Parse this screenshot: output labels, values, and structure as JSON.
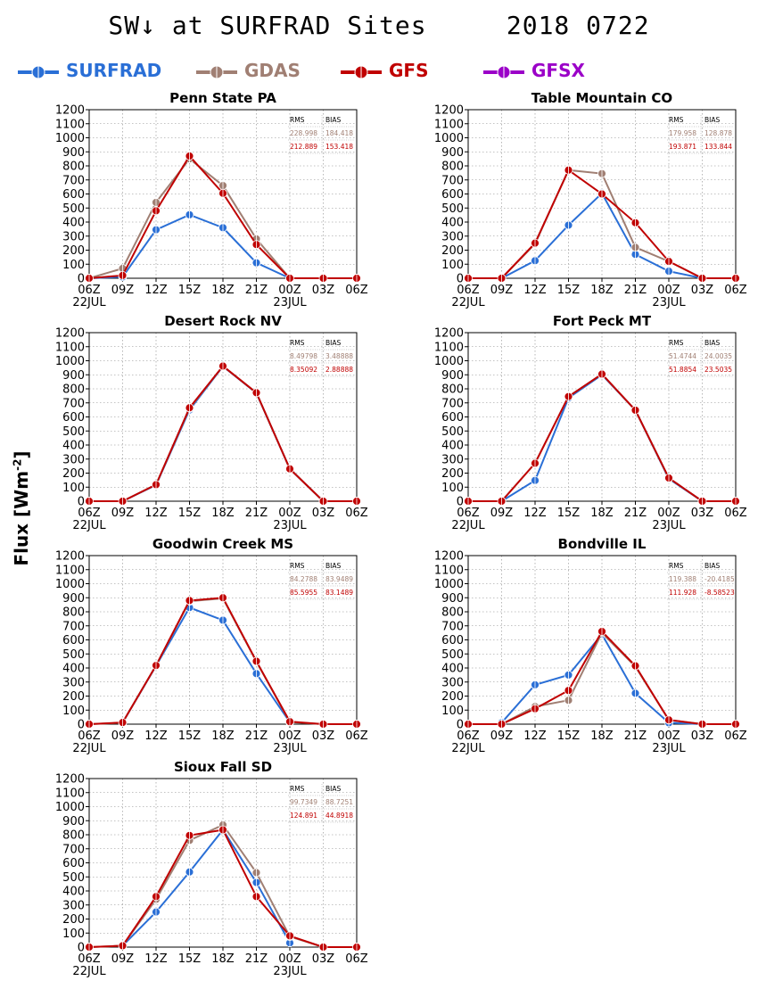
{
  "header": {
    "title_left": "SW↓ at SURFRAD Sites",
    "title_right": "2018 0722"
  },
  "legend": [
    {
      "name": "SURFRAD",
      "color": "#2a6fd6"
    },
    {
      "name": "GDAS",
      "color": "#a07f73"
    },
    {
      "name": "GFS",
      "color": "#c00000"
    },
    {
      "name": "GFSX",
      "color": "#9b00c8"
    }
  ],
  "ylabel": {
    "text": "Flux [Wm",
    "sup": "-2",
    "close": "]"
  },
  "chart_data": [
    {
      "type": "line",
      "title": "Penn State PA",
      "x": [
        "06Z",
        "09Z",
        "12Z",
        "15Z",
        "18Z",
        "21Z",
        "00Z",
        "03Z",
        "06Z"
      ],
      "date_labels": [
        "22JUL",
        "23JUL"
      ],
      "ylim": [
        0,
        1200
      ],
      "yticks": [
        0,
        100,
        200,
        300,
        400,
        500,
        600,
        700,
        800,
        900,
        1000,
        1100,
        1200
      ],
      "grid": true,
      "stats": {
        "rms_label": "RMS",
        "bias_label": "BIAS",
        "rows": [
          {
            "rms": "228.998",
            "bias": "184.418",
            "color": "#a07f73"
          },
          {
            "rms": "212.889",
            "bias": "153.418",
            "color": "#c00000"
          }
        ]
      },
      "series": [
        {
          "name": "SURFRAD",
          "color": "#2a6fd6",
          "values": [
            0,
            10,
            345,
            452,
            360,
            110,
            0,
            null,
            null
          ]
        },
        {
          "name": "GDAS",
          "color": "#a07f73",
          "values": [
            0,
            70,
            540,
            850,
            660,
            280,
            0,
            0,
            0
          ]
        },
        {
          "name": "GFS",
          "color": "#c00000",
          "values": [
            0,
            20,
            480,
            870,
            605,
            240,
            0,
            0,
            0
          ]
        }
      ]
    },
    {
      "type": "line",
      "title": "Table Mountain CO",
      "x": [
        "06Z",
        "09Z",
        "12Z",
        "15Z",
        "18Z",
        "21Z",
        "00Z",
        "03Z",
        "06Z"
      ],
      "date_labels": [
        "22JUL",
        "23JUL"
      ],
      "ylim": [
        0,
        1200
      ],
      "yticks": [
        0,
        100,
        200,
        300,
        400,
        500,
        600,
        700,
        800,
        900,
        1000,
        1100,
        1200
      ],
      "grid": true,
      "stats": {
        "rms_label": "RMS",
        "bias_label": "BIAS",
        "rows": [
          {
            "rms": "179.958",
            "bias": "128.878",
            "color": "#a07f73"
          },
          {
            "rms": "193.871",
            "bias": "133.844",
            "color": "#c00000"
          }
        ]
      },
      "series": [
        {
          "name": "SURFRAD",
          "color": "#2a6fd6",
          "values": [
            null,
            0,
            125,
            378,
            605,
            170,
            50,
            0,
            null
          ]
        },
        {
          "name": "GDAS",
          "color": "#a07f73",
          "values": [
            0,
            0,
            245,
            770,
            745,
            220,
            120,
            0,
            0
          ]
        },
        {
          "name": "GFS",
          "color": "#c00000",
          "values": [
            0,
            0,
            250,
            770,
            600,
            395,
            120,
            0,
            0
          ]
        }
      ]
    },
    {
      "type": "line",
      "title": "Desert Rock NV",
      "x": [
        "06Z",
        "09Z",
        "12Z",
        "15Z",
        "18Z",
        "21Z",
        "00Z",
        "03Z",
        "06Z"
      ],
      "date_labels": [
        "22JUL",
        "23JUL"
      ],
      "ylim": [
        0,
        1200
      ],
      "yticks": [
        0,
        100,
        200,
        300,
        400,
        500,
        600,
        700,
        800,
        900,
        1000,
        1100,
        1200
      ],
      "grid": true,
      "stats": {
        "rms_label": "RMS",
        "bias_label": "BIAS",
        "rows": [
          {
            "rms": "8.49798",
            "bias": "3.48888",
            "color": "#a07f73"
          },
          {
            "rms": "8.35092",
            "bias": "2.88888",
            "color": "#c00000"
          }
        ]
      },
      "series": [
        {
          "name": "SURFRAD",
          "color": "#2a6fd6",
          "values": [
            null,
            0,
            115,
            650,
            960,
            770,
            230,
            0,
            null
          ]
        },
        {
          "name": "GDAS",
          "color": "#a07f73",
          "values": [
            0,
            0,
            118,
            660,
            962,
            772,
            230,
            0,
            0
          ]
        },
        {
          "name": "GFS",
          "color": "#c00000",
          "values": [
            0,
            0,
            118,
            665,
            962,
            772,
            230,
            0,
            0
          ]
        }
      ]
    },
    {
      "type": "line",
      "title": "Fort Peck MT",
      "x": [
        "06Z",
        "09Z",
        "12Z",
        "15Z",
        "18Z",
        "21Z",
        "00Z",
        "03Z",
        "06Z"
      ],
      "date_labels": [
        "22JUL",
        "23JUL"
      ],
      "ylim": [
        0,
        1200
      ],
      "yticks": [
        0,
        100,
        200,
        300,
        400,
        500,
        600,
        700,
        800,
        900,
        1000,
        1100,
        1200
      ],
      "grid": true,
      "stats": {
        "rms_label": "RMS",
        "bias_label": "BIAS",
        "rows": [
          {
            "rms": "51.4744",
            "bias": "24.0035",
            "color": "#a07f73"
          },
          {
            "rms": "51.8854",
            "bias": "23.5035",
            "color": "#c00000"
          }
        ]
      },
      "series": [
        {
          "name": "SURFRAD",
          "color": "#2a6fd6",
          "values": [
            null,
            0,
            148,
            735,
            900,
            648,
            160,
            0,
            null
          ]
        },
        {
          "name": "GDAS",
          "color": "#a07f73",
          "values": [
            0,
            0,
            270,
            745,
            905,
            648,
            165,
            0,
            0
          ]
        },
        {
          "name": "GFS",
          "color": "#c00000",
          "values": [
            0,
            0,
            270,
            745,
            905,
            648,
            165,
            0,
            0
          ]
        }
      ]
    },
    {
      "type": "line",
      "title": "Goodwin Creek MS",
      "x": [
        "06Z",
        "09Z",
        "12Z",
        "15Z",
        "18Z",
        "21Z",
        "00Z",
        "03Z",
        "06Z"
      ],
      "date_labels": [
        "22JUL",
        "23JUL"
      ],
      "ylim": [
        0,
        1200
      ],
      "yticks": [
        0,
        100,
        200,
        300,
        400,
        500,
        600,
        700,
        800,
        900,
        1000,
        1100,
        1200
      ],
      "grid": true,
      "stats": {
        "rms_label": "RMS",
        "bias_label": "BIAS",
        "rows": [
          {
            "rms": "84.2788",
            "bias": "83.9489",
            "color": "#a07f73"
          },
          {
            "rms": "85.5955",
            "bias": "83.1489",
            "color": "#c00000"
          }
        ]
      },
      "series": [
        {
          "name": "SURFRAD",
          "color": "#2a6fd6",
          "values": [
            null,
            10,
            415,
            830,
            740,
            360,
            15,
            null,
            null
          ]
        },
        {
          "name": "GDAS",
          "color": "#a07f73",
          "values": [
            0,
            10,
            418,
            875,
            895,
            445,
            15,
            0,
            0
          ]
        },
        {
          "name": "GFS",
          "color": "#c00000",
          "values": [
            0,
            12,
            418,
            880,
            900,
            448,
            18,
            0,
            0
          ]
        }
      ]
    },
    {
      "type": "line",
      "title": "Bondville IL",
      "x": [
        "06Z",
        "09Z",
        "12Z",
        "15Z",
        "18Z",
        "21Z",
        "00Z",
        "03Z",
        "06Z"
      ],
      "date_labels": [
        "22JUL",
        "23JUL"
      ],
      "ylim": [
        0,
        1200
      ],
      "yticks": [
        0,
        100,
        200,
        300,
        400,
        500,
        600,
        700,
        800,
        900,
        1000,
        1100,
        1200
      ],
      "grid": true,
      "stats": {
        "rms_label": "RMS",
        "bias_label": "BIAS",
        "rows": [
          {
            "rms": "119.388",
            "bias": "-20.4185",
            "color": "#a07f73"
          },
          {
            "rms": "111.928",
            "bias": "-8.58523",
            "color": "#c00000"
          }
        ]
      },
      "series": [
        {
          "name": "SURFRAD",
          "color": "#2a6fd6",
          "values": [
            null,
            10,
            280,
            350,
            640,
            220,
            10,
            0,
            null
          ]
        },
        {
          "name": "GDAS",
          "color": "#a07f73",
          "values": [
            0,
            0,
            125,
            170,
            650,
            410,
            30,
            0,
            0
          ]
        },
        {
          "name": "GFS",
          "color": "#c00000",
          "values": [
            0,
            0,
            110,
            240,
            660,
            415,
            30,
            0,
            0
          ]
        }
      ]
    },
    {
      "type": "line",
      "title": "Sioux Fall SD",
      "x": [
        "06Z",
        "09Z",
        "12Z",
        "15Z",
        "18Z",
        "21Z",
        "00Z",
        "03Z",
        "06Z"
      ],
      "date_labels": [
        "22JUL",
        "23JUL"
      ],
      "ylim": [
        0,
        1200
      ],
      "yticks": [
        0,
        100,
        200,
        300,
        400,
        500,
        600,
        700,
        800,
        900,
        1000,
        1100,
        1200
      ],
      "grid": true,
      "stats": {
        "rms_label": "RMS",
        "bias_label": "BIAS",
        "rows": [
          {
            "rms": "99.7349",
            "bias": "88.7251",
            "color": "#a07f73"
          },
          {
            "rms": "124.891",
            "bias": "44.8918",
            "color": "#c00000"
          }
        ]
      },
      "series": [
        {
          "name": "SURFRAD",
          "color": "#2a6fd6",
          "values": [
            null,
            10,
            250,
            535,
            835,
            460,
            30,
            null,
            null
          ]
        },
        {
          "name": "GDAS",
          "color": "#a07f73",
          "values": [
            0,
            10,
            340,
            760,
            870,
            530,
            75,
            0,
            0
          ]
        },
        {
          "name": "GFS",
          "color": "#c00000",
          "values": [
            0,
            10,
            360,
            795,
            835,
            360,
            80,
            0,
            0
          ]
        }
      ]
    }
  ]
}
